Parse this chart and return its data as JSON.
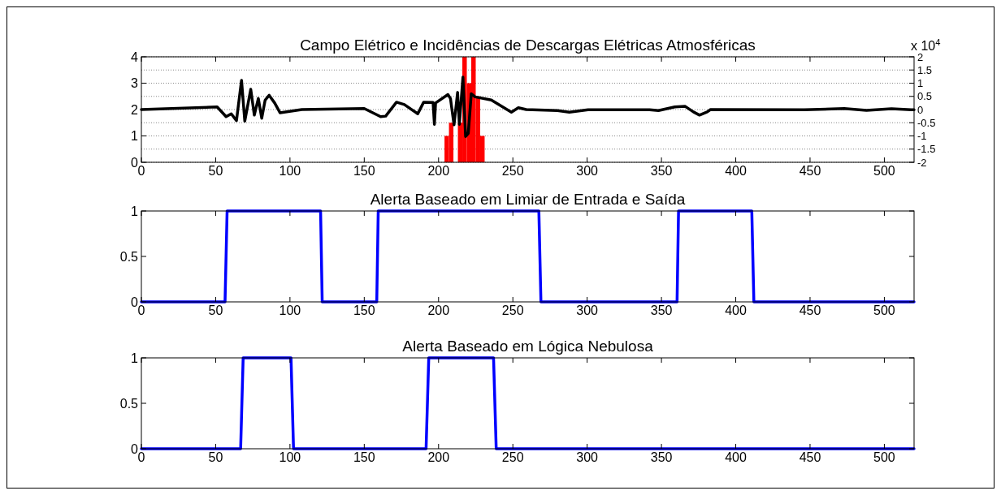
{
  "chart_data": [
    {
      "type": "line",
      "title": "Campo Elétrico e Incidências de Descargas Elétricas Atmosféricas",
      "xlim": [
        0,
        520
      ],
      "xticks": [
        0,
        50,
        100,
        150,
        200,
        250,
        300,
        350,
        400,
        450,
        500
      ],
      "ylim": [
        0,
        4
      ],
      "yticks": [
        0,
        1,
        2,
        3,
        4
      ],
      "y2lim": [
        -2,
        2
      ],
      "y2ticks": [
        -2,
        -1.5,
        -1,
        -0.5,
        0,
        0.5,
        1,
        1.5,
        2
      ],
      "grid": "y2",
      "annotations": [
        "x 10$^{4}$"
      ],
      "series": [
        {
          "type": "histogram",
          "color": "#ff0000",
          "bins": [
            204,
            207,
            210,
            213,
            216,
            219,
            222,
            225,
            228,
            231
          ],
          "values": [
            1,
            1.5,
            0,
            1.5,
            4,
            3,
            4,
            2.5,
            1
          ]
        },
        {
          "axis": "y2",
          "color": "#000000",
          "x": [
            0,
            51,
            57,
            60.5,
            64,
            67.4,
            69.6,
            73.6,
            76,
            78.7,
            81,
            83.3,
            86,
            89.7,
            93.3,
            108,
            150,
            161,
            164.4,
            171.7,
            177,
            186,
            190,
            196.3,
            197.2,
            198,
            206.3,
            208,
            210.4,
            212.8,
            214,
            216.4,
            218.2,
            220,
            222,
            224.6,
            235.5,
            249,
            253.7,
            259,
            280,
            288,
            300.6,
            342,
            348,
            359,
            366,
            371.5,
            375.6,
            380.8,
            383,
            446,
            473,
            488,
            504.8,
            518,
            520
          ],
          "values": [
            0,
            0.1,
            -0.27,
            -0.16,
            -0.42,
            1.11,
            -0.44,
            0.77,
            -0.21,
            0.42,
            -0.33,
            0.36,
            0.54,
            0.25,
            -0.12,
            0,
            0.04,
            -0.27,
            -0.25,
            0.28,
            0.19,
            -0.16,
            0.28,
            0.27,
            -0.56,
            0.25,
            0.57,
            0.42,
            -0.58,
            0.65,
            -0.56,
            1.23,
            -1.02,
            -0.9,
            0.6,
            0.48,
            0.36,
            -0.1,
            0.07,
            0,
            -0.04,
            -0.1,
            -0.01,
            -0.01,
            -0.04,
            0.1,
            0.12,
            -0.09,
            -0.21,
            -0.09,
            0,
            -0.01,
            0.04,
            -0.03,
            0.03,
            -0.01,
            -0.01
          ]
        }
      ]
    },
    {
      "type": "line",
      "title": "Alerta Baseado em Limiar de Entrada e Saída",
      "xlim": [
        0,
        520
      ],
      "xticks": [
        0,
        50,
        100,
        150,
        200,
        250,
        300,
        350,
        400,
        450,
        500
      ],
      "ylim": [
        0,
        1
      ],
      "yticks": [
        0,
        0.5,
        1
      ],
      "series": [
        {
          "color": "#0000ff",
          "x": [
            0,
            56.3,
            57.7,
            120.6,
            121.7,
            158.4,
            159.4,
            267.5,
            268.9,
            360.5,
            361.5,
            410.8,
            412.2,
            520
          ],
          "values": [
            0,
            0,
            1,
            1,
            0,
            0,
            1,
            1,
            0,
            0,
            1,
            1,
            0,
            0
          ]
        }
      ]
    },
    {
      "type": "line",
      "title": "Alerta Baseado em Lógica Nebulosa",
      "xlim": [
        0,
        520
      ],
      "xticks": [
        0,
        50,
        100,
        150,
        200,
        250,
        300,
        350,
        400,
        450,
        500
      ],
      "ylim": [
        0,
        1
      ],
      "yticks": [
        0,
        0.5,
        1
      ],
      "series": [
        {
          "color": "#0000ff",
          "x": [
            0,
            66.8,
            68.5,
            100.7,
            102.4,
            191.6,
            193.4,
            237,
            238.8,
            520
          ],
          "values": [
            0,
            0,
            1,
            1,
            0,
            0,
            1,
            1,
            0,
            0
          ]
        }
      ]
    }
  ]
}
